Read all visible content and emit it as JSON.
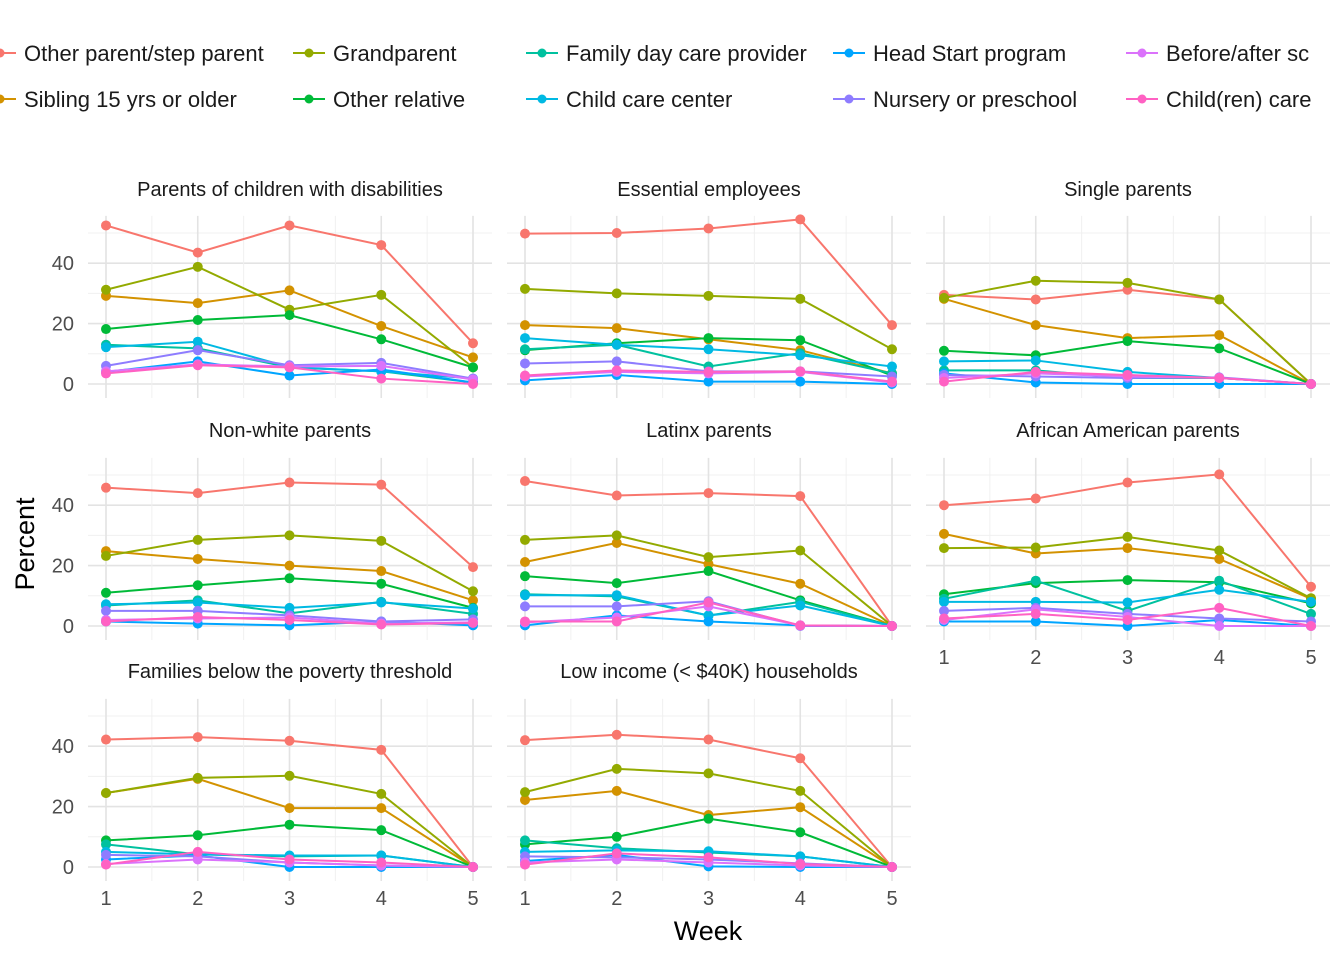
{
  "chart_data": {
    "type": "line",
    "xlabel": "Week",
    "ylabel": "Percent",
    "x": [
      1,
      2,
      3,
      4,
      5
    ],
    "ylim": [
      0,
      55
    ],
    "yticks": [
      0,
      20,
      40
    ],
    "legend_position": "top",
    "series_styles": [
      {
        "name": "Other parent/step parent",
        "color": "#F8766D"
      },
      {
        "name": "Sibling 15 yrs or older",
        "color": "#D39200"
      },
      {
        "name": "Grandparent",
        "color": "#93AA00"
      },
      {
        "name": "Other relative",
        "color": "#00BA38"
      },
      {
        "name": "Family day care provider",
        "color": "#00C19F"
      },
      {
        "name": "Child care center",
        "color": "#00B9E3"
      },
      {
        "name": "Head Start program",
        "color": "#00A5FF"
      },
      {
        "name": "Nursery or preschool",
        "color": "#8E7CFF"
      },
      {
        "name": "Before/after school",
        "color": "#DB72FB"
      },
      {
        "name": "Child(ren) care",
        "color": "#FF61C3"
      }
    ],
    "legend_rows": [
      [
        "Other parent/step parent",
        "Grandparent",
        "Family day care provider",
        "Head Start program",
        "Before/after sc"
      ],
      [
        "Sibling 15 yrs or older",
        "Other relative",
        "Child care center",
        "Nursery or preschool",
        "Child(ren) care"
      ]
    ],
    "panels": [
      {
        "title": "Parents of children with disabilities",
        "series": [
          {
            "name": "Other parent/step parent",
            "values": [
              52.5,
              43.5,
              52.5,
              46,
              13.5
            ]
          },
          {
            "name": "Sibling 15 yrs or older",
            "values": [
              29.2,
              26.8,
              31,
              19.2,
              8.8
            ]
          },
          {
            "name": "Grandparent",
            "values": [
              31.2,
              38.8,
              24.6,
              29.5,
              5.5
            ]
          },
          {
            "name": "Other relative",
            "values": [
              18.2,
              21.2,
              22.8,
              14.8,
              5.5
            ]
          },
          {
            "name": "Family day care provider",
            "values": [
              13,
              11.8,
              5.5,
              4.2,
              0.5
            ]
          },
          {
            "name": "Child care center",
            "values": [
              12.2,
              14,
              5.6,
              4.2,
              1.8
            ]
          },
          {
            "name": "Head Start program",
            "values": [
              4,
              7.5,
              2.8,
              4.8,
              0.5
            ]
          },
          {
            "name": "Nursery or preschool",
            "values": [
              6,
              11.2,
              6.2,
              7,
              1.8
            ]
          },
          {
            "name": "Before/after school",
            "values": [
              4.2,
              6.5,
              5.8,
              6,
              1.5
            ]
          },
          {
            "name": "Child(ren) care",
            "values": [
              3.5,
              6.2,
              5.5,
              1.8,
              0
            ]
          }
        ]
      },
      {
        "title": "Essential employees",
        "series": [
          {
            "name": "Other parent/step parent",
            "values": [
              49.8,
              50,
              51.5,
              54.5,
              19.5
            ]
          },
          {
            "name": "Sibling 15 yrs or older",
            "values": [
              19.5,
              18.5,
              14.8,
              11.2,
              3.5
            ]
          },
          {
            "name": "Grandparent",
            "values": [
              31.5,
              30,
              29.2,
              28.2,
              11.5
            ]
          },
          {
            "name": "Other relative",
            "values": [
              11.2,
              13.5,
              15.2,
              14.5,
              2.8
            ]
          },
          {
            "name": "Family day care provider",
            "values": [
              11.5,
              13,
              5.8,
              10.2,
              3.5
            ]
          },
          {
            "name": "Child care center",
            "values": [
              15.2,
              13,
              11.5,
              9.5,
              5.8
            ]
          },
          {
            "name": "Head Start program",
            "values": [
              1.2,
              3,
              0.8,
              0.8,
              0
            ]
          },
          {
            "name": "Nursery or preschool",
            "values": [
              6.8,
              7.5,
              4.2,
              4.2,
              2.5
            ]
          },
          {
            "name": "Before/after school",
            "values": [
              2.5,
              4,
              3.5,
              4,
              0.5
            ]
          },
          {
            "name": "Child(ren) care",
            "values": [
              2.8,
              4.5,
              4,
              4.2,
              0.8
            ]
          }
        ]
      },
      {
        "title": "Single parents",
        "series": [
          {
            "name": "Other parent/step parent",
            "values": [
              29.5,
              28,
              31.2,
              28,
              0
            ]
          },
          {
            "name": "Sibling 15 yrs or older",
            "values": [
              28.2,
              19.5,
              15.2,
              16.2,
              0
            ]
          },
          {
            "name": "Grandparent",
            "values": [
              28.5,
              34.2,
              33.5,
              28,
              0
            ]
          },
          {
            "name": "Other relative",
            "values": [
              11,
              9.5,
              14.2,
              11.8,
              0
            ]
          },
          {
            "name": "Family day care provider",
            "values": [
              4.5,
              4.5,
              2,
              2,
              0
            ]
          },
          {
            "name": "Child care center",
            "values": [
              7.5,
              7.8,
              4,
              2,
              0
            ]
          },
          {
            "name": "Head Start program",
            "values": [
              3.5,
              0.5,
              0,
              0,
              0
            ]
          },
          {
            "name": "Nursery or preschool",
            "values": [
              3,
              2.5,
              2,
              2.2,
              0
            ]
          },
          {
            "name": "Before/after school",
            "values": [
              2,
              3.5,
              2.5,
              2,
              0
            ]
          },
          {
            "name": "Child(ren) care",
            "values": [
              0.8,
              4,
              3,
              2,
              0
            ]
          }
        ]
      },
      {
        "title": "Non-white parents",
        "series": [
          {
            "name": "Other parent/step parent",
            "values": [
              45.8,
              44,
              47.5,
              46.8,
              19.5
            ]
          },
          {
            "name": "Sibling 15 yrs or older",
            "values": [
              24.8,
              22.2,
              20,
              18.2,
              8.5
            ]
          },
          {
            "name": "Grandparent",
            "values": [
              23.2,
              28.5,
              30,
              28.2,
              11.5
            ]
          },
          {
            "name": "Other relative",
            "values": [
              11,
              13.5,
              15.8,
              14,
              6
            ]
          },
          {
            "name": "Family day care provider",
            "values": [
              6.8,
              8.5,
              4.2,
              8,
              4
            ]
          },
          {
            "name": "Child care center",
            "values": [
              7.2,
              7.8,
              6,
              7.8,
              5.8
            ]
          },
          {
            "name": "Head Start program",
            "values": [
              1.5,
              0.8,
              0.2,
              1.5,
              0.2
            ]
          },
          {
            "name": "Nursery or preschool",
            "values": [
              5,
              5,
              3.5,
              1.5,
              2.2
            ]
          },
          {
            "name": "Before/after school",
            "values": [
              2,
              2.5,
              2.8,
              0.8,
              1.2
            ]
          },
          {
            "name": "Child(ren) care",
            "values": [
              1.5,
              3,
              2,
              0.5,
              1
            ]
          }
        ]
      },
      {
        "title": "Latinx parents",
        "series": [
          {
            "name": "Other parent/step parent",
            "values": [
              48,
              43.2,
              44,
              43,
              0
            ]
          },
          {
            "name": "Sibling 15 yrs or older",
            "values": [
              21.2,
              27.5,
              20.5,
              14,
              0
            ]
          },
          {
            "name": "Grandparent",
            "values": [
              28.5,
              30,
              22.8,
              25,
              0
            ]
          },
          {
            "name": "Other relative",
            "values": [
              16.5,
              14.2,
              18.2,
              8.5,
              0
            ]
          },
          {
            "name": "Family day care provider",
            "values": [
              10.5,
              9.8,
              3.5,
              8,
              0
            ]
          },
          {
            "name": "Child care center",
            "values": [
              10.2,
              10.2,
              3.5,
              6.8,
              0
            ]
          },
          {
            "name": "Head Start program",
            "values": [
              0.2,
              3.5,
              1.5,
              0.2,
              0
            ]
          },
          {
            "name": "Nursery or preschool",
            "values": [
              6.5,
              6.5,
              8.2,
              0,
              0
            ]
          },
          {
            "name": "Before/after school",
            "values": [
              1.2,
              2.8,
              6.5,
              0.2,
              0
            ]
          },
          {
            "name": "Child(ren) care",
            "values": [
              1.5,
              1.5,
              7.8,
              0.2,
              0
            ]
          }
        ]
      },
      {
        "title": "African American parents",
        "series": [
          {
            "name": "Other parent/step parent",
            "values": [
              40,
              42.2,
              47.5,
              50.2,
              13
            ]
          },
          {
            "name": "Sibling 15 yrs or older",
            "values": [
              30.5,
              24,
              25.8,
              22.2,
              9
            ]
          },
          {
            "name": "Grandparent",
            "values": [
              25.8,
              26,
              29.5,
              25,
              9.2
            ]
          },
          {
            "name": "Other relative",
            "values": [
              10.5,
              14.2,
              15.2,
              14.5,
              7.5
            ]
          },
          {
            "name": "Family day care provider",
            "values": [
              9,
              15,
              5,
              15,
              4
            ]
          },
          {
            "name": "Child care center",
            "values": [
              8,
              8,
              7.8,
              12,
              8
            ]
          },
          {
            "name": "Head Start program",
            "values": [
              1.5,
              1.5,
              0,
              2,
              0
            ]
          },
          {
            "name": "Nursery or preschool",
            "values": [
              5,
              6,
              4,
              2.5,
              1.5
            ]
          },
          {
            "name": "Before/after school",
            "values": [
              2,
              5.5,
              3,
              0,
              0
            ]
          },
          {
            "name": "Child(ren) care",
            "values": [
              2.5,
              4,
              2,
              6,
              0
            ]
          }
        ]
      },
      {
        "title": "Families below the poverty threshold",
        "series": [
          {
            "name": "Other parent/step parent",
            "values": [
              42.2,
              43,
              41.8,
              38.8,
              0
            ]
          },
          {
            "name": "Sibling 15 yrs or older",
            "values": [
              24.5,
              29.2,
              19.5,
              19.5,
              0
            ]
          },
          {
            "name": "Grandparent",
            "values": [
              24.5,
              29.5,
              30.2,
              24.2,
              0
            ]
          },
          {
            "name": "Other relative",
            "values": [
              8.8,
              10.5,
              14,
              12.2,
              0
            ]
          },
          {
            "name": "Family day care provider",
            "values": [
              7.5,
              4.2,
              3.5,
              3.8,
              0
            ]
          },
          {
            "name": "Child care center",
            "values": [
              5,
              4.2,
              3.8,
              3.8,
              0
            ]
          },
          {
            "name": "Head Start program",
            "values": [
              2.5,
              3.8,
              0,
              0,
              0
            ]
          },
          {
            "name": "Nursery or preschool",
            "values": [
              4,
              3.5,
              1.5,
              0.5,
              0
            ]
          },
          {
            "name": "Before/after school",
            "values": [
              1,
              2.5,
              1.5,
              0.5,
              0
            ]
          },
          {
            "name": "Child(ren) care",
            "values": [
              0.8,
              5,
              2.5,
              1.5,
              0
            ]
          }
        ]
      },
      {
        "title": "Low income (< $40K) households",
        "series": [
          {
            "name": "Other parent/step parent",
            "values": [
              42,
              43.8,
              42.2,
              36,
              0
            ]
          },
          {
            "name": "Sibling 15 yrs or older",
            "values": [
              22.2,
              25.2,
              17.2,
              19.8,
              0
            ]
          },
          {
            "name": "Grandparent",
            "values": [
              24.8,
              32.5,
              31,
              25.2,
              0
            ]
          },
          {
            "name": "Other relative",
            "values": [
              7.5,
              10,
              16,
              11.5,
              0
            ]
          },
          {
            "name": "Family day care provider",
            "values": [
              8.8,
              6.2,
              4.8,
              3.5,
              0
            ]
          },
          {
            "name": "Child care center",
            "values": [
              5,
              5.5,
              5.2,
              3.5,
              0
            ]
          },
          {
            "name": "Head Start program",
            "values": [
              2,
              4,
              0.2,
              0,
              0
            ]
          },
          {
            "name": "Nursery or preschool",
            "values": [
              3.5,
              3.2,
              2.5,
              1.2,
              0
            ]
          },
          {
            "name": "Before/after school",
            "values": [
              1.5,
              2.5,
              1.5,
              0.5,
              0
            ]
          },
          {
            "name": "Child(ren) care",
            "values": [
              0.8,
              4.5,
              3.2,
              1,
              0
            ]
          }
        ]
      }
    ]
  }
}
